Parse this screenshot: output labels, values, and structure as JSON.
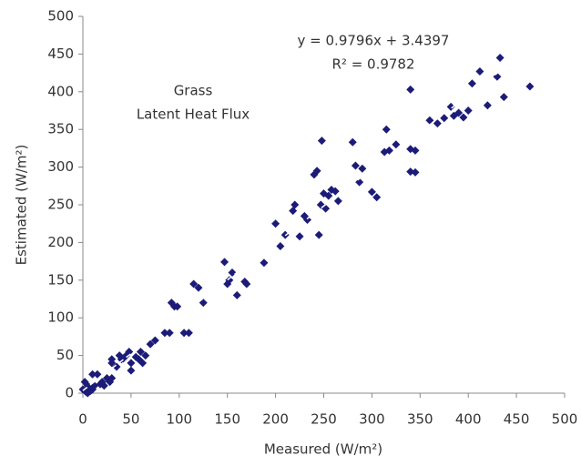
{
  "chart_data": {
    "type": "scatter",
    "x_label": "Measured (W/m²)",
    "y_label": "Estimated (W/m²)",
    "annotations": [
      "Grass",
      "Latent Heat Flux"
    ],
    "trendline": {
      "slope": 0.9796,
      "intercept": 3.4397,
      "equation": "y = 0.9796x + 3.4397",
      "r2_label": "R² = 0.9782"
    },
    "xlim": [
      0,
      500
    ],
    "xticks": [
      0,
      50,
      100,
      150,
      200,
      250,
      300,
      350,
      400,
      450,
      500
    ],
    "ylim": [
      0,
      500
    ],
    "yticks": [
      0,
      50,
      100,
      150,
      200,
      250,
      300,
      350,
      400,
      450,
      500
    ],
    "color": "#1c1c78",
    "x": [
      433,
      412,
      404,
      400,
      437,
      464,
      420,
      390,
      382,
      385,
      375,
      368,
      360,
      395,
      430,
      340,
      340,
      345,
      340,
      345,
      325,
      315,
      313,
      318,
      305,
      300,
      290,
      283,
      280,
      287,
      265,
      258,
      255,
      252,
      248,
      247,
      245,
      243,
      240,
      233,
      230,
      225,
      220,
      218,
      210,
      205,
      200,
      188,
      170,
      168,
      160,
      155,
      152,
      147,
      150,
      125,
      120,
      115,
      110,
      105,
      95,
      92,
      90,
      85,
      75,
      70,
      65,
      62,
      60,
      58,
      55,
      50,
      50,
      45,
      40,
      38,
      35,
      30,
      30,
      28,
      25,
      22,
      20,
      15,
      12,
      10,
      8,
      5,
      3,
      2,
      0,
      5,
      10,
      18,
      30,
      6,
      250,
      262,
      98,
      48,
      42
    ],
    "values": [
      445,
      427,
      411,
      375,
      393,
      407,
      382,
      372,
      380,
      368,
      365,
      358,
      362,
      366,
      420,
      403,
      324,
      322,
      294,
      293,
      330,
      350,
      320,
      322,
      260,
      267,
      298,
      302,
      333,
      280,
      255,
      270,
      262,
      245,
      335,
      250,
      210,
      295,
      290,
      230,
      235,
      208,
      250,
      242,
      210,
      195,
      225,
      173,
      145,
      148,
      130,
      160,
      150,
      174,
      145,
      120,
      140,
      145,
      80,
      80,
      115,
      120,
      80,
      80,
      70,
      65,
      50,
      40,
      55,
      45,
      48,
      40,
      30,
      50,
      45,
      50,
      35,
      40,
      20,
      15,
      20,
      10,
      15,
      25,
      10,
      5,
      3,
      10,
      2,
      15,
      5,
      0,
      25,
      12,
      45,
      8,
      265,
      268,
      115,
      55,
      46
    ]
  }
}
